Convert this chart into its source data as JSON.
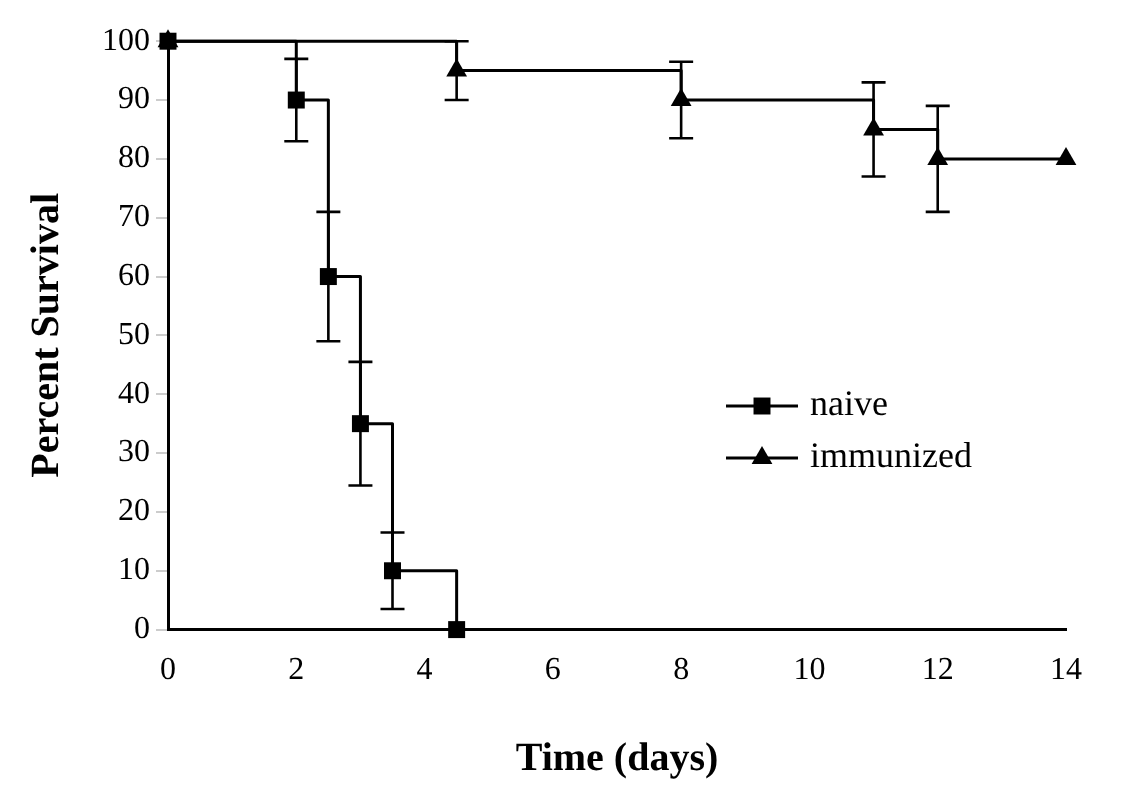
{
  "chart_data": {
    "type": "step",
    "xlabel": "Time (days)",
    "ylabel": "Percent Survival",
    "xlim": [
      0,
      14
    ],
    "xticks": [
      0,
      2,
      4,
      6,
      8,
      10,
      12,
      14
    ],
    "ylim": [
      0,
      100
    ],
    "yticks": [
      0,
      10,
      20,
      30,
      40,
      50,
      60,
      70,
      80,
      90,
      100
    ],
    "grid": false,
    "legend": "right",
    "series": [
      {
        "name": "naive",
        "color": "#000000",
        "marker": "square",
        "x": [
          0,
          2,
          2.5,
          3,
          3.5,
          4.5
        ],
        "values": [
          100,
          90,
          60,
          35,
          10,
          0
        ],
        "errors": [
          null,
          7,
          11,
          10.5,
          6.5,
          null
        ]
      },
      {
        "name": "immunized",
        "color": "#000000",
        "marker": "triangle",
        "x": [
          0,
          4.5,
          8,
          11,
          12,
          14
        ],
        "values": [
          100,
          95,
          90,
          85,
          80,
          80
        ],
        "errors": [
          null,
          5,
          6.5,
          8,
          9,
          null
        ]
      }
    ]
  }
}
